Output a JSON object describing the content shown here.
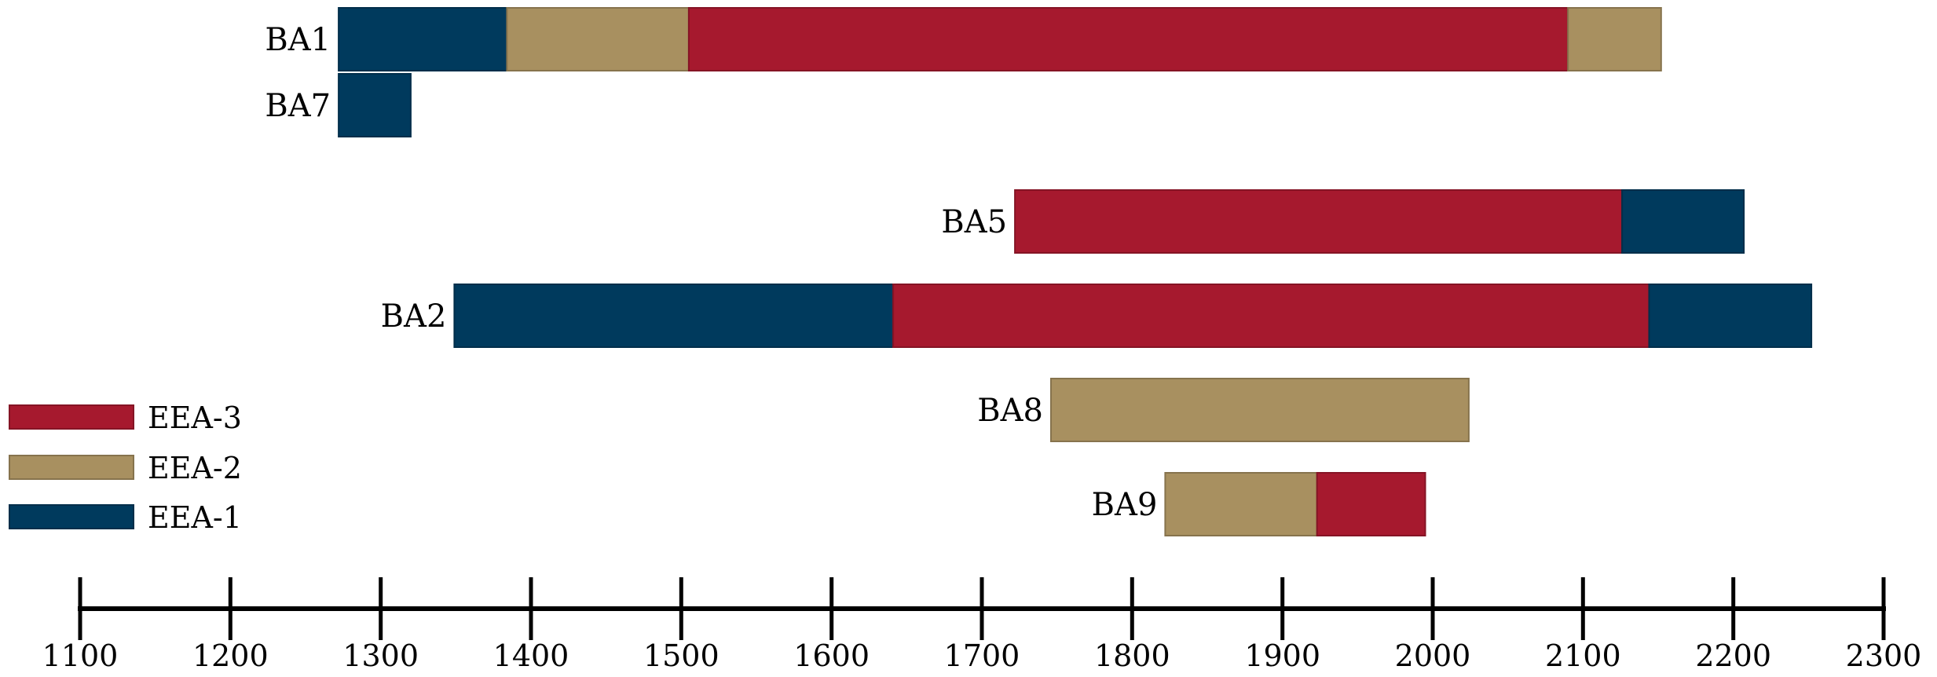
{
  "chart_data": {
    "type": "bar",
    "orientation": "horizontal",
    "subtype": "timeline-gantt",
    "title": "",
    "xlabel": "",
    "ylabel": "",
    "xlim": [
      1100,
      2300
    ],
    "xticks": [
      1100,
      1200,
      1300,
      1400,
      1500,
      1600,
      1700,
      1800,
      1900,
      2000,
      2100,
      2200,
      2300
    ],
    "grid": false,
    "legend_position": "left",
    "legend": [
      {
        "name": "EEA-3",
        "color": "#a6192e"
      },
      {
        "name": "EEA-2",
        "color": "#a89060"
      },
      {
        "name": "EEA-1",
        "color": "#003a5d"
      }
    ],
    "rows": [
      {
        "label": "BA1",
        "segments": [
          {
            "start": 1272,
            "end": 1384,
            "series": "EEA-1"
          },
          {
            "start": 1384,
            "end": 1505,
            "series": "EEA-2"
          },
          {
            "start": 1505,
            "end": 2090,
            "series": "EEA-3"
          },
          {
            "start": 2090,
            "end": 2152,
            "series": "EEA-2"
          }
        ]
      },
      {
        "label": "BA7",
        "segments": [
          {
            "start": 1272,
            "end": 1320,
            "series": "EEA-1"
          }
        ]
      },
      {
        "label": "BA5",
        "segments": [
          {
            "start": 1722,
            "end": 2126,
            "series": "EEA-3"
          },
          {
            "start": 2126,
            "end": 2207,
            "series": "EEA-1"
          }
        ]
      },
      {
        "label": "BA2",
        "segments": [
          {
            "start": 1349,
            "end": 1641,
            "series": "EEA-1"
          },
          {
            "start": 1641,
            "end": 2144,
            "series": "EEA-3"
          },
          {
            "start": 2144,
            "end": 2252,
            "series": "EEA-1"
          }
        ]
      },
      {
        "label": "BA8",
        "segments": [
          {
            "start": 1746,
            "end": 2024,
            "series": "EEA-2"
          }
        ]
      },
      {
        "label": "BA9",
        "segments": [
          {
            "start": 1822,
            "end": 1923,
            "series": "EEA-2"
          },
          {
            "start": 1923,
            "end": 1995,
            "series": "EEA-3"
          }
        ]
      }
    ]
  }
}
